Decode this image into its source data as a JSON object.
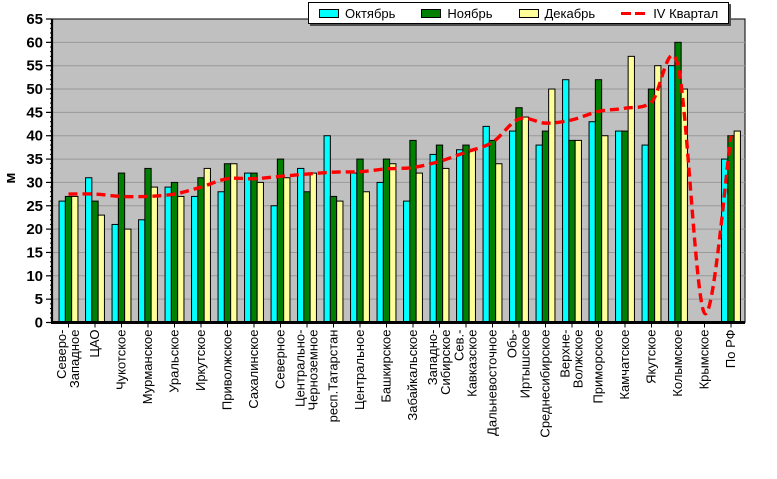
{
  "chart_data": {
    "type": "bar",
    "title": "",
    "xlabel": "",
    "ylabel": "м",
    "ylim": [
      0,
      65
    ],
    "ytick_step": 5,
    "grid": true,
    "plot_bg_color": "#C0C0C0",
    "gridline_color": "#999999",
    "legend_position": "top",
    "categories": [
      "Северо-Западное",
      "ЦАО",
      "Чукотское",
      "Мурманское",
      "Уральское",
      "Иркутское",
      "Приволжское",
      "Сахалинское",
      "Северное",
      "Центрально-Черноземное",
      "респ.Татарстан",
      "Центральное",
      "Башкирское",
      "Забайкальское",
      "Западно-Сибирское",
      "Сев.-Кавказское",
      "Дальневосточное",
      "Обь-Иртышское",
      "Среднесибирское",
      "Верхне-Волжское",
      "Приморское",
      "Камчатское",
      "Якутское",
      "Колымское",
      "Крымское",
      "По РФ"
    ],
    "series": [
      {
        "name": "Октябрь",
        "color": "#00FFFF",
        "values": [
          26,
          31,
          21,
          22,
          29,
          27,
          28,
          32,
          25,
          33,
          40,
          32,
          30,
          26,
          36,
          37,
          42,
          41,
          38,
          52,
          43,
          41,
          38,
          55,
          0,
          35
        ]
      },
      {
        "name": "Ноябрь",
        "color": "#008000",
        "values": [
          27,
          26,
          32,
          33,
          30,
          31,
          34,
          32,
          35,
          28,
          27,
          35,
          35,
          39,
          38,
          38,
          39,
          46,
          41,
          39,
          52,
          41,
          50,
          60,
          0,
          40
        ]
      },
      {
        "name": "Декабрь",
        "color": "#FFFF99",
        "values": [
          27,
          23,
          20,
          29,
          27,
          33,
          34,
          30,
          31,
          32,
          26,
          28,
          34,
          32,
          33,
          37,
          34,
          44,
          50,
          39,
          40,
          57,
          55,
          50,
          0,
          41
        ]
      }
    ],
    "line_series": [
      {
        "name": "IV Квартал",
        "color": "#FF0000",
        "style": "dashed",
        "values": [
          27.5,
          27.5,
          27,
          27,
          27.5,
          29,
          30.8,
          30.8,
          31.3,
          31.8,
          32.2,
          32.3,
          32.9,
          33.2,
          34.5,
          36.5,
          38.6,
          43.6,
          42.7,
          43.4,
          45.2,
          45.9,
          47.2,
          55,
          2,
          40
        ]
      }
    ]
  }
}
